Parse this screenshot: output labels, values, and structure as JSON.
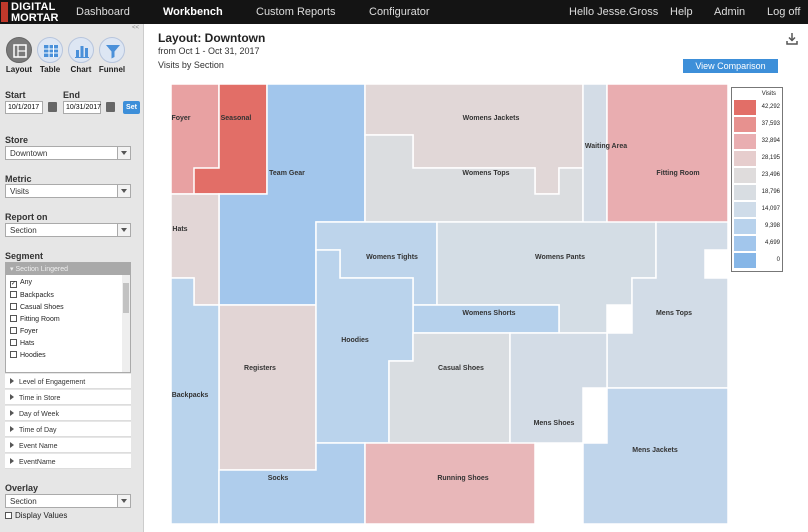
{
  "app": {
    "logo_line1": "DIGITAL",
    "logo_line2": "MORTAR"
  },
  "nav": {
    "items": [
      "Dashboard",
      "Workbench",
      "Custom Reports",
      "Configurator"
    ],
    "active": "Workbench",
    "user_greeting": "Hello Jesse.Gross",
    "help": "Help",
    "admin": "Admin",
    "logoff": "Log off"
  },
  "tools": {
    "layout": "Layout",
    "table": "Table",
    "chart": "Chart",
    "funnel": "Funnel"
  },
  "filters": {
    "start_label": "Start",
    "end_label": "End",
    "start_value": "10/1/2017",
    "end_value": "10/31/2017",
    "set_label": "Set",
    "store_label": "Store",
    "store_value": "Downtown",
    "metric_label": "Metric",
    "metric_value": "Visits",
    "report_label": "Report on",
    "report_value": "Section",
    "segment_label": "Segment",
    "segment_header": "Section Lingered",
    "segment_items": [
      "Any",
      "Backpacks",
      "Casual Shoes",
      "Fitting Room",
      "Foyer",
      "Hats",
      "Hoodies"
    ],
    "accordions": [
      "Level of Engagement",
      "Time in Store",
      "Day of Week",
      "Time of Day",
      "Event Name",
      "EventName"
    ],
    "overlay_label": "Overlay",
    "overlay_value": "Section",
    "display_values_label": "Display Values"
  },
  "main": {
    "title": "Layout: Downtown",
    "date_range": "from Oct 1 - Oct 31, 2017",
    "subtitle": "Visits by Section",
    "view_comparison": "View Comparison"
  },
  "legend": {
    "title": "Visits",
    "values": [
      "42,292",
      "37,593",
      "32,894",
      "28,195",
      "23,496",
      "18,796",
      "14,097",
      "9,398",
      "4,699",
      "0"
    ],
    "colors": [
      "#e26e67",
      "#e7918f",
      "#e9aeb1",
      "#e6cdcd",
      "#dfdcdc",
      "#d8dde2",
      "#cfdce9",
      "#b8d2ec",
      "#a2c6ec",
      "#86b6e7"
    ]
  },
  "colors": {
    "accent": "#3d8fd9",
    "topbar": "#141414",
    "hot": "#e26e67",
    "cold": "#86b6e7"
  },
  "sections": [
    {
      "name": "Foyer",
      "visits": 35000
    },
    {
      "name": "Seasonal",
      "visits": 42292
    },
    {
      "name": "Team Gear",
      "visits": 4800
    },
    {
      "name": "Womens Jackets",
      "visits": 25000
    },
    {
      "name": "Womens Tops",
      "visits": 20500
    },
    {
      "name": "Waiting Area",
      "visits": 16000
    },
    {
      "name": "Fitting Room",
      "visits": 33000
    },
    {
      "name": "Hats",
      "visits": 25500
    },
    {
      "name": "Womens Tights",
      "visits": 10500
    },
    {
      "name": "Womens Pants",
      "visits": 16500
    },
    {
      "name": "Womens Shorts",
      "visits": 9000
    },
    {
      "name": "Registers",
      "visits": 25800
    },
    {
      "name": "Hoodies",
      "visits": 9900
    },
    {
      "name": "Casual Shoes",
      "visits": 19500
    },
    {
      "name": "Mens Tops",
      "visits": 15500
    },
    {
      "name": "Backpacks",
      "visits": 9700
    },
    {
      "name": "Mens Shoes",
      "visits": 16300
    },
    {
      "name": "Mens Jackets",
      "visits": 11000
    },
    {
      "name": "Socks",
      "visits": 7500
    },
    {
      "name": "Running Shoes",
      "visits": 31500
    }
  ]
}
